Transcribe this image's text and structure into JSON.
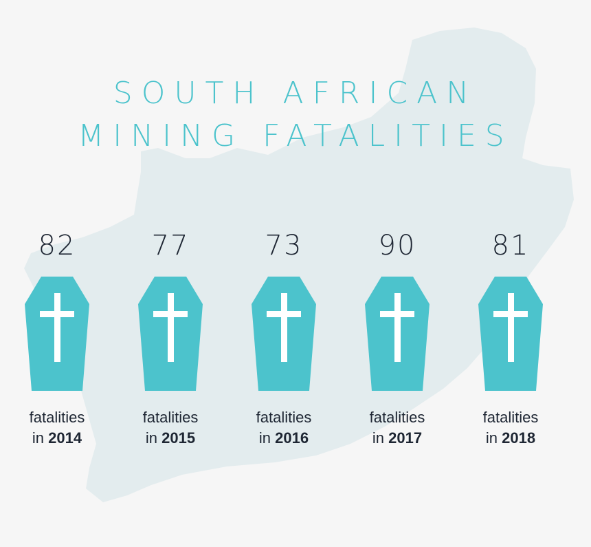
{
  "title": {
    "line1": "SOUTH AFRICAN",
    "line2": "MINING FATALITIES"
  },
  "colors": {
    "accent": "#4cc3cc",
    "text": "#1e2633",
    "map": "#e3ecee",
    "background": "#f6f6f6"
  },
  "chart_data": {
    "type": "bar",
    "categories": [
      "2014",
      "2015",
      "2016",
      "2017",
      "2018"
    ],
    "values": [
      82,
      77,
      73,
      90,
      81
    ]
  },
  "items": [
    {
      "value": "82",
      "label": "fatalities",
      "prefix": "in",
      "year": "2014",
      "icon": "coffin-cross-icon"
    },
    {
      "value": "77",
      "label": "fatalities",
      "prefix": "in",
      "year": "2015",
      "icon": "coffin-cross-icon"
    },
    {
      "value": "73",
      "label": "fatalities",
      "prefix": "in",
      "year": "2016",
      "icon": "coffin-cross-icon"
    },
    {
      "value": "90",
      "label": "fatalities",
      "prefix": "in",
      "year": "2017",
      "icon": "coffin-cross-icon"
    },
    {
      "value": "81",
      "label": "fatalities",
      "prefix": "in",
      "year": "2018",
      "icon": "coffin-cross-icon"
    }
  ]
}
